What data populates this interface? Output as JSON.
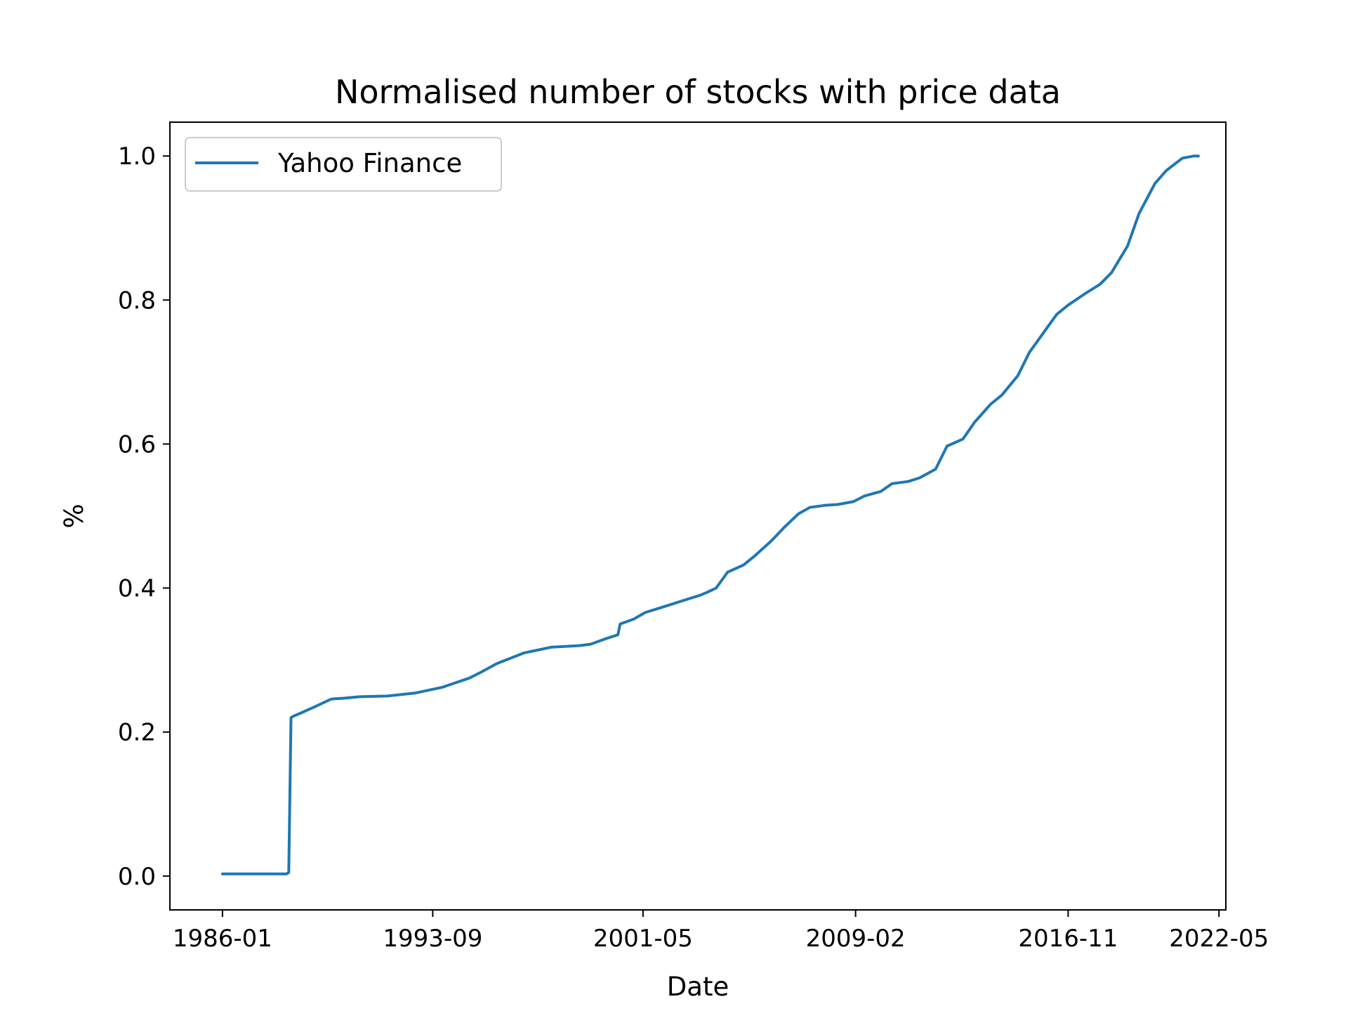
{
  "chart_data": {
    "type": "line",
    "title": "Normalised number of stocks with price data",
    "xlabel": "Date",
    "ylabel": "%",
    "xlim": [
      "1984-02",
      "2022-08"
    ],
    "ylim": [
      -0.047,
      1.047
    ],
    "x_ticks": [
      "1986-01",
      "1993-09",
      "2001-05",
      "2009-02",
      "2016-11",
      "2022-05"
    ],
    "y_ticks": [
      "0.0",
      "0.2",
      "0.4",
      "0.6",
      "0.8",
      "1.0"
    ],
    "grid": false,
    "legend": {
      "position": "upper-left",
      "entries": [
        "Yahoo Finance"
      ]
    },
    "colors": {
      "series": "#1f77b4"
    },
    "series": [
      {
        "name": "Yahoo Finance",
        "x": [
          "1986-01",
          "1988-05",
          "1988-06",
          "1988-07",
          "1988-08",
          "1988-11",
          "1989-06",
          "1989-12",
          "1990-01",
          "1990-06",
          "1991-01",
          "1992-01",
          "1993-01",
          "1994-01",
          "1995-01",
          "1995-06",
          "1996-01",
          "1997-01",
          "1998-01",
          "1999-01",
          "1999-06",
          "2000-01",
          "2000-06",
          "2000-07",
          "2001-01",
          "2001-06",
          "2002-01",
          "2003-01",
          "2003-06",
          "2003-09",
          "2004-01",
          "2004-06",
          "2005-01",
          "2005-06",
          "2006-01",
          "2006-07",
          "2007-01",
          "2007-06",
          "2008-01",
          "2008-06",
          "2009-01",
          "2009-06",
          "2010-01",
          "2010-06",
          "2011-01",
          "2011-06",
          "2012-01",
          "2012-06",
          "2013-01",
          "2013-06",
          "2014-01",
          "2014-06",
          "2015-01",
          "2015-06",
          "2016-01",
          "2016-06",
          "2016-11",
          "2017-06",
          "2018-01",
          "2018-06",
          "2019-01",
          "2019-06",
          "2020-01",
          "2020-06",
          "2021-01",
          "2021-06",
          "2021-08"
        ],
        "y": [
          0.003,
          0.003,
          0.005,
          0.22,
          0.222,
          0.226,
          0.236,
          0.245,
          0.246,
          0.247,
          0.249,
          0.25,
          0.254,
          0.262,
          0.275,
          0.283,
          0.295,
          0.31,
          0.318,
          0.32,
          0.322,
          0.33,
          0.335,
          0.35,
          0.357,
          0.366,
          0.373,
          0.385,
          0.39,
          0.394,
          0.4,
          0.422,
          0.432,
          0.445,
          0.465,
          0.485,
          0.503,
          0.512,
          0.515,
          0.516,
          0.52,
          0.528,
          0.534,
          0.545,
          0.548,
          0.553,
          0.565,
          0.597,
          0.607,
          0.63,
          0.655,
          0.668,
          0.695,
          0.727,
          0.758,
          0.78,
          0.793,
          0.808,
          0.822,
          0.838,
          0.875,
          0.92,
          0.962,
          0.98,
          0.997,
          1.0,
          1.0
        ]
      }
    ]
  }
}
